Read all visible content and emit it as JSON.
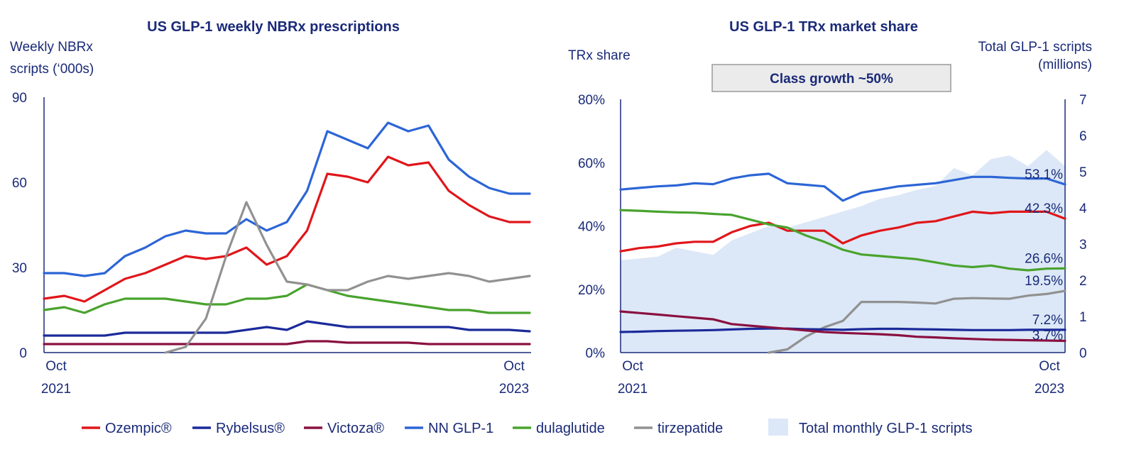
{
  "chart_data": [
    {
      "type": "line",
      "title": "US GLP-1 weekly NBRx prescriptions",
      "ylabel_lines": [
        "Weekly NBRx",
        "scripts (‘000s)"
      ],
      "ylim": [
        0,
        90
      ],
      "yticks": [
        0,
        30,
        60,
        90
      ],
      "xtick_labels": [
        {
          "top": "Oct",
          "bottom": "2021"
        },
        {
          "top": "Oct",
          "bottom": "2023"
        }
      ],
      "x": [
        "2021-10",
        "2021-11",
        "2021-12",
        "2022-01",
        "2022-02",
        "2022-03",
        "2022-04",
        "2022-05",
        "2022-06",
        "2022-07",
        "2022-08",
        "2022-09",
        "2022-10",
        "2022-11",
        "2022-12",
        "2023-01",
        "2023-02",
        "2023-03",
        "2023-04",
        "2023-05",
        "2023-06",
        "2023-07",
        "2023-08",
        "2023-09",
        "2023-10"
      ],
      "series": [
        {
          "name": "Ozempic®",
          "color": "#e0161b",
          "values": [
            19,
            20,
            18,
            22,
            26,
            28,
            31,
            34,
            33,
            34,
            37,
            31,
            34,
            43,
            63,
            62,
            60,
            69,
            66,
            67,
            57,
            52,
            48,
            46,
            46
          ]
        },
        {
          "name": "Rybelsus®",
          "color": "#1b2a9a",
          "values": [
            6,
            6,
            6,
            6,
            7,
            7,
            7,
            7,
            7,
            7,
            8,
            9,
            8,
            11,
            10,
            9,
            9,
            9,
            9,
            9,
            9,
            8,
            8,
            8,
            7.5
          ]
        },
        {
          "name": "Victoza®",
          "color": "#8a1040",
          "values": [
            3,
            3,
            3,
            3,
            3,
            3,
            3,
            3,
            3,
            3,
            3,
            3,
            3,
            4,
            4,
            3.5,
            3.5,
            3.5,
            3.5,
            3,
            3,
            3,
            3,
            3,
            3
          ]
        },
        {
          "name": "NN GLP-1",
          "color": "#2c65d6",
          "values": [
            28,
            28,
            27,
            28,
            34,
            37,
            41,
            43,
            42,
            42,
            47,
            43,
            46,
            57,
            78,
            75,
            72,
            81,
            78,
            80,
            68,
            62,
            58,
            56,
            56
          ]
        },
        {
          "name": "dulaglutide",
          "color": "#49a32e",
          "values": [
            15,
            16,
            14,
            17,
            19,
            19,
            19,
            18,
            17,
            17,
            19,
            19,
            20,
            24,
            22,
            20,
            19,
            18,
            17,
            16,
            15,
            15,
            14,
            14,
            14
          ]
        },
        {
          "name": "tirzepatide",
          "color": "#919191",
          "values": [
            null,
            null,
            null,
            null,
            null,
            null,
            0,
            2,
            12,
            34,
            53,
            38,
            25,
            24,
            22,
            22,
            25,
            27,
            26,
            27,
            28,
            27,
            25,
            26,
            27
          ]
        }
      ]
    },
    {
      "type": "line+area",
      "title": "US GLP-1 TRx market share",
      "ylabel_left": "TRx share",
      "ylabel_right_lines": [
        "Total GLP-1 scripts",
        "(millions)"
      ],
      "ylim_left": [
        0,
        80
      ],
      "yticks_left": [
        "0%",
        "20%",
        "40%",
        "60%",
        "80%"
      ],
      "ylim_right": [
        0,
        7
      ],
      "yticks_right": [
        0,
        1,
        2,
        3,
        4,
        5,
        6,
        7
      ],
      "annotation_box": "Class growth ~50%",
      "xtick_labels": [
        {
          "top": "Oct",
          "bottom": "2021"
        },
        {
          "top": "Oct",
          "bottom": "2023"
        }
      ],
      "x": [
        "2021-10",
        "2021-11",
        "2021-12",
        "2022-01",
        "2022-02",
        "2022-03",
        "2022-04",
        "2022-05",
        "2022-06",
        "2022-07",
        "2022-08",
        "2022-09",
        "2022-10",
        "2022-11",
        "2022-12",
        "2023-01",
        "2023-02",
        "2023-03",
        "2023-04",
        "2023-05",
        "2023-06",
        "2023-07",
        "2023-08",
        "2023-09",
        "2023-10"
      ],
      "area": {
        "name": "Total monthly GLP-1 scripts",
        "color": "#dce8f7",
        "values": [
          2.55,
          2.6,
          2.65,
          2.9,
          2.8,
          2.7,
          3.1,
          3.3,
          3.5,
          3.45,
          3.6,
          3.75,
          3.9,
          4.05,
          4.25,
          4.35,
          4.5,
          4.6,
          5.1,
          4.9,
          5.35,
          5.45,
          5.15,
          5.6,
          5.15
        ]
      },
      "series": [
        {
          "name": "NN GLP-1",
          "color": "#2c65d6",
          "end_label": "53.1%",
          "values": [
            51.5,
            52,
            52.5,
            52.8,
            53.5,
            53.2,
            55,
            56,
            56.5,
            53.5,
            53,
            52.5,
            48,
            50.5,
            51.5,
            52.5,
            53,
            53.5,
            54.5,
            55.5,
            55.5,
            55.2,
            55,
            55,
            53.1
          ]
        },
        {
          "name": "Ozempic®",
          "color": "#e0161b",
          "end_label": "42.3%",
          "values": [
            32,
            33,
            33.5,
            34.5,
            35,
            35,
            38,
            40,
            41,
            38.5,
            38.5,
            38.5,
            34.5,
            37,
            38.5,
            39.5,
            41,
            41.5,
            43,
            44.5,
            44,
            44.5,
            44.5,
            44.5,
            42.3
          ]
        },
        {
          "name": "dulaglutide",
          "color": "#49a32e",
          "end_label": "26.6%",
          "values": [
            45,
            44.8,
            44.5,
            44.3,
            44.2,
            43.8,
            43.5,
            42,
            40.5,
            39.5,
            37,
            35,
            32.5,
            31,
            30.5,
            30,
            29.5,
            28.5,
            27.5,
            27,
            27.5,
            26.5,
            26,
            26.5,
            26.6
          ]
        },
        {
          "name": "tirzepatide",
          "color": "#919191",
          "end_label": "19.5%",
          "values": [
            null,
            null,
            null,
            null,
            null,
            null,
            null,
            null,
            0,
            1,
            5,
            8,
            10,
            16,
            16,
            16,
            15.8,
            15.5,
            17,
            17.2,
            17.1,
            17,
            18,
            18.5,
            19.5
          ]
        },
        {
          "name": "Rybelsus®",
          "color": "#1b2a9a",
          "end_label": "7.2%",
          "values": [
            6.5,
            6.6,
            6.8,
            6.9,
            7,
            7.1,
            7.3,
            7.5,
            7.6,
            7.6,
            7.4,
            7.3,
            7.2,
            7.4,
            7.5,
            7.5,
            7.4,
            7.3,
            7.2,
            7.1,
            7.1,
            7.1,
            7.2,
            7.2,
            7.2
          ]
        },
        {
          "name": "Victoza®",
          "color": "#8a1040",
          "end_label": "3.7%",
          "values": [
            13,
            12.5,
            12,
            11.5,
            11,
            10.5,
            9,
            8.5,
            8,
            7.5,
            7,
            6.5,
            6.2,
            6,
            5.8,
            5.5,
            5,
            4.8,
            4.5,
            4.3,
            4.1,
            4,
            3.9,
            3.8,
            3.7
          ]
        }
      ]
    }
  ],
  "legend": [
    {
      "label": "Ozempic®",
      "color": "#e0161b",
      "kind": "line"
    },
    {
      "label": "Rybelsus®",
      "color": "#1b2a9a",
      "kind": "line"
    },
    {
      "label": "Victoza®",
      "color": "#8a1040",
      "kind": "line"
    },
    {
      "label": "NN GLP-1",
      "color": "#2c65d6",
      "kind": "line"
    },
    {
      "label": "dulaglutide",
      "color": "#49a32e",
      "kind": "line"
    },
    {
      "label": "tirzepatide",
      "color": "#919191",
      "kind": "line"
    },
    {
      "label": "Total monthly GLP-1 scripts",
      "color": "#dce8f7",
      "kind": "area"
    }
  ]
}
